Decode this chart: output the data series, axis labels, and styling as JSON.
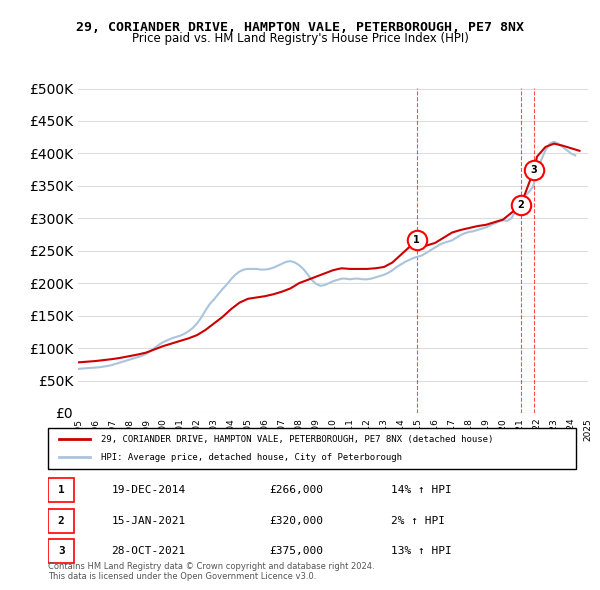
{
  "title": "29, CORIANDER DRIVE, HAMPTON VALE, PETERBOROUGH, PE7 8NX",
  "subtitle": "Price paid vs. HM Land Registry's House Price Index (HPI)",
  "ylim": [
    0,
    500000
  ],
  "yticks": [
    0,
    50000,
    100000,
    150000,
    200000,
    250000,
    300000,
    350000,
    400000,
    450000,
    500000
  ],
  "xlabel": "",
  "hpi_color": "#aac4dd",
  "price_color": "#cc0000",
  "legend_label_price": "29, CORIANDER DRIVE, HAMPTON VALE, PETERBOROUGH, PE7 8NX (detached house)",
  "legend_label_hpi": "HPI: Average price, detached house, City of Peterborough",
  "transactions": [
    {
      "num": 1,
      "date": "19-DEC-2014",
      "price": 266000,
      "hpi_pct": "14%",
      "direction": "↑"
    },
    {
      "num": 2,
      "date": "15-JAN-2021",
      "price": 320000,
      "hpi_pct": "2%",
      "direction": "↑"
    },
    {
      "num": 3,
      "date": "28-OCT-2021",
      "price": 375000,
      "hpi_pct": "13%",
      "direction": "↑"
    }
  ],
  "footer": "Contains HM Land Registry data © Crown copyright and database right 2024.\nThis data is licensed under the Open Government Licence v3.0.",
  "hpi_data": {
    "years": [
      1995.0,
      1995.25,
      1995.5,
      1995.75,
      1996.0,
      1996.25,
      1996.5,
      1996.75,
      1997.0,
      1997.25,
      1997.5,
      1997.75,
      1998.0,
      1998.25,
      1998.5,
      1998.75,
      1999.0,
      1999.25,
      1999.5,
      1999.75,
      2000.0,
      2000.25,
      2000.5,
      2000.75,
      2001.0,
      2001.25,
      2001.5,
      2001.75,
      2002.0,
      2002.25,
      2002.5,
      2002.75,
      2003.0,
      2003.25,
      2003.5,
      2003.75,
      2004.0,
      2004.25,
      2004.5,
      2004.75,
      2005.0,
      2005.25,
      2005.5,
      2005.75,
      2006.0,
      2006.25,
      2006.5,
      2006.75,
      2007.0,
      2007.25,
      2007.5,
      2007.75,
      2008.0,
      2008.25,
      2008.5,
      2008.75,
      2009.0,
      2009.25,
      2009.5,
      2009.75,
      2010.0,
      2010.25,
      2010.5,
      2010.75,
      2011.0,
      2011.25,
      2011.5,
      2011.75,
      2012.0,
      2012.25,
      2012.5,
      2012.75,
      2013.0,
      2013.25,
      2013.5,
      2013.75,
      2014.0,
      2014.25,
      2014.5,
      2014.75,
      2015.0,
      2015.25,
      2015.5,
      2015.75,
      2016.0,
      2016.25,
      2016.5,
      2016.75,
      2017.0,
      2017.25,
      2017.5,
      2017.75,
      2018.0,
      2018.25,
      2018.5,
      2018.75,
      2019.0,
      2019.25,
      2019.5,
      2019.75,
      2020.0,
      2020.25,
      2020.5,
      2020.75,
      2021.0,
      2021.25,
      2021.5,
      2021.75,
      2022.0,
      2022.25,
      2022.5,
      2022.75,
      2023.0,
      2023.25,
      2023.5,
      2023.75,
      2024.0,
      2024.25
    ],
    "values": [
      68000,
      68500,
      69000,
      69500,
      70000,
      70500,
      71500,
      72500,
      74000,
      76000,
      78000,
      80000,
      82000,
      84000,
      86000,
      88000,
      91000,
      95000,
      100000,
      105000,
      109000,
      112000,
      115000,
      117000,
      119000,
      122000,
      126000,
      131000,
      138000,
      147000,
      158000,
      168000,
      175000,
      183000,
      191000,
      198000,
      206000,
      213000,
      218000,
      221000,
      222000,
      222000,
      222000,
      221000,
      221000,
      222000,
      224000,
      227000,
      230000,
      233000,
      234000,
      232000,
      228000,
      222000,
      214000,
      205000,
      199000,
      196000,
      197000,
      200000,
      203000,
      205000,
      207000,
      207000,
      206000,
      207000,
      207000,
      206000,
      206000,
      207000,
      209000,
      211000,
      213000,
      216000,
      220000,
      225000,
      229000,
      233000,
      236000,
      239000,
      241000,
      243000,
      247000,
      251000,
      255000,
      259000,
      262000,
      264000,
      266000,
      270000,
      274000,
      277000,
      279000,
      280000,
      282000,
      284000,
      286000,
      289000,
      292000,
      295000,
      297000,
      296000,
      300000,
      312000,
      323000,
      333000,
      340000,
      348000,
      370000,
      390000,
      405000,
      415000,
      418000,
      415000,
      410000,
      405000,
      400000,
      397000
    ]
  },
  "price_data": {
    "years": [
      1995.0,
      1995.5,
      1996.0,
      1996.5,
      1997.0,
      1997.5,
      1998.0,
      1998.5,
      1999.0,
      1999.5,
      2000.0,
      2000.5,
      2001.0,
      2001.5,
      2002.0,
      2002.5,
      2003.0,
      2003.5,
      2004.0,
      2004.5,
      2005.0,
      2005.5,
      2006.0,
      2006.5,
      2007.0,
      2007.5,
      2008.0,
      2008.5,
      2009.0,
      2009.5,
      2010.0,
      2010.5,
      2011.0,
      2011.5,
      2012.0,
      2012.5,
      2013.0,
      2013.5,
      2014.92,
      2015.0,
      2015.5,
      2016.0,
      2016.5,
      2017.0,
      2017.5,
      2018.0,
      2018.5,
      2019.0,
      2019.5,
      2020.0,
      2021.04,
      2021.83,
      2022.0,
      2022.5,
      2023.0,
      2023.5,
      2024.0,
      2024.5
    ],
    "values": [
      78000,
      79000,
      80000,
      81500,
      83000,
      85000,
      87500,
      90000,
      93000,
      98000,
      103000,
      107000,
      111000,
      115000,
      120000,
      128000,
      138000,
      148000,
      160000,
      170000,
      176000,
      178000,
      180000,
      183000,
      187000,
      192000,
      200000,
      205000,
      210000,
      215000,
      220000,
      223000,
      222000,
      222000,
      222000,
      223000,
      225000,
      232000,
      266000,
      255000,
      258000,
      262000,
      270000,
      278000,
      282000,
      285000,
      288000,
      290000,
      294000,
      298000,
      320000,
      375000,
      395000,
      410000,
      415000,
      412000,
      408000,
      404000
    ]
  },
  "transaction_markers": [
    {
      "year": 2014.92,
      "price": 266000,
      "label": "1"
    },
    {
      "year": 2021.04,
      "price": 320000,
      "label": "2"
    },
    {
      "year": 2021.83,
      "price": 375000,
      "label": "3"
    }
  ],
  "vlines": [
    {
      "year": 2014.92,
      "label": "1"
    },
    {
      "year": 2021.04,
      "label": "2"
    },
    {
      "year": 2021.83,
      "label": "3"
    }
  ],
  "xmin": 1995,
  "xmax": 2025
}
